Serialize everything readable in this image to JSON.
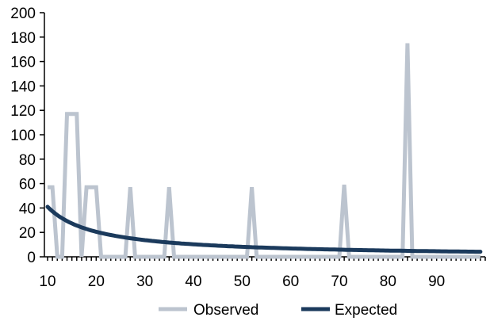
{
  "chart_data": {
    "type": "line",
    "title": "",
    "xlabel": "",
    "ylabel": "",
    "xlim": [
      10,
      100
    ],
    "ylim": [
      0,
      200
    ],
    "x_ticks": [
      10,
      20,
      30,
      40,
      50,
      60,
      70,
      80,
      90
    ],
    "y_ticks": [
      0,
      20,
      40,
      60,
      80,
      100,
      120,
      140,
      160,
      180,
      200
    ],
    "grid": false,
    "legend": "bottom",
    "series": [
      {
        "name": "Observed",
        "color": "#bcc4cf",
        "points": [
          [
            10,
            57
          ],
          [
            11,
            57
          ],
          [
            12,
            0
          ],
          [
            13,
            0
          ],
          [
            14,
            117
          ],
          [
            15,
            117
          ],
          [
            16,
            117
          ],
          [
            17,
            0
          ],
          [
            18,
            57
          ],
          [
            19,
            57
          ],
          [
            20,
            57
          ],
          [
            21,
            0
          ],
          [
            22,
            0
          ],
          [
            26,
            0
          ],
          [
            27,
            57
          ],
          [
            28,
            0
          ],
          [
            29,
            0
          ],
          [
            34,
            0
          ],
          [
            35,
            57
          ],
          [
            36,
            0
          ],
          [
            37,
            0
          ],
          [
            51,
            0
          ],
          [
            52,
            57
          ],
          [
            53,
            0
          ],
          [
            54,
            0
          ],
          [
            70,
            0
          ],
          [
            71,
            59
          ],
          [
            72,
            0
          ],
          [
            73,
            0
          ],
          [
            83,
            0
          ],
          [
            84,
            175
          ],
          [
            85,
            0
          ],
          [
            86,
            0
          ],
          [
            99,
            0
          ]
        ]
      },
      {
        "name": "Expected",
        "color": "#1b3a5c",
        "function": "410/x",
        "x_range": [
          10,
          99
        ]
      }
    ]
  }
}
